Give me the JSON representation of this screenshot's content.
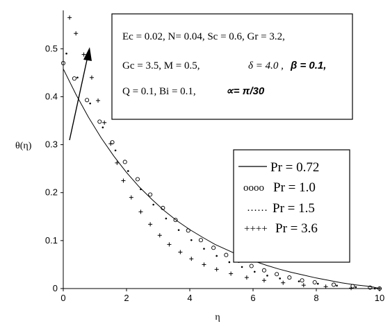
{
  "chart_data": {
    "type": "scatter",
    "xlabel": "η",
    "ylabel": "θ(η)",
    "xlim": [
      0,
      10
    ],
    "ylim": [
      0,
      0.58
    ],
    "xticks": [
      "0",
      "2",
      "4",
      "6",
      "8",
      "10"
    ],
    "yticks": [
      "0",
      "0.1",
      "0.2",
      "0.3",
      "0.4",
      "0.5"
    ],
    "annotation_lines": [
      "Ec = 0.02, N= 0.04, Sc = 0.6, Gr = 3.2,",
      "Gc = 3.5, M = 0.5,",
      "Q = 0.1, Bi = 0.1,"
    ],
    "annotation_greek": {
      "delta": "δ = 4.0 ,",
      "beta": "β = 0.1,",
      "alpha": "∝= π/30"
    },
    "legend": [
      {
        "symbol": "———",
        "label": "Pr = 0.72",
        "marker": "line"
      },
      {
        "symbol": "oooo",
        "label": "Pr = 1.0",
        "marker": "circle"
      },
      {
        "symbol": "……",
        "label": "Pr = 1.5",
        "marker": "dot"
      },
      {
        "symbol": "++++",
        "label": "Pr = 3.6",
        "marker": "plus"
      }
    ],
    "series": [
      {
        "values": [
          0.458,
          0.405,
          0.357,
          0.314,
          0.276,
          0.242,
          0.212,
          0.186,
          0.162,
          0.141,
          0.123,
          0.107,
          0.092,
          0.08,
          0.068,
          0.058,
          0.049,
          0.041,
          0.034,
          0.028,
          0.022,
          0.017,
          0.012,
          0.008,
          0.005,
          0.003,
          0.0
        ]
      },
      {
        "values": [
          0.47,
          0.438,
          0.393,
          0.348,
          0.305,
          0.264,
          0.228,
          0.196,
          0.168,
          0.143,
          0.121,
          0.101,
          0.085,
          0.07,
          0.058,
          0.047,
          0.038,
          0.03,
          0.023,
          0.017,
          0.013,
          0.008,
          0.005,
          0.002,
          0.0
        ]
      },
      {
        "values": [
          0.49,
          0.44,
          0.386,
          0.336,
          0.288,
          0.245,
          0.207,
          0.175,
          0.146,
          0.122,
          0.101,
          0.083,
          0.068,
          0.055,
          0.045,
          0.035,
          0.027,
          0.021,
          0.015,
          0.01,
          0.006,
          0.003,
          0.0
        ]
      },
      {
        "values": [
          0.565,
          0.532,
          0.488,
          0.44,
          0.392,
          0.346,
          0.302,
          0.262,
          0.225,
          0.19,
          0.16,
          0.134,
          0.111,
          0.092,
          0.076,
          0.062,
          0.05,
          0.04,
          0.031,
          0.023,
          0.017,
          0.012,
          0.007,
          0.004,
          0.001,
          0.0
        ]
      }
    ],
    "series_x": [
      [
        0,
        0.4,
        0.8,
        1.2,
        1.6,
        2.0,
        2.4,
        2.8,
        3.2,
        3.6,
        4.0,
        4.4,
        4.8,
        5.2,
        5.6,
        6.0,
        6.4,
        6.8,
        7.2,
        7.6,
        8.0,
        8.4,
        8.8,
        9.2,
        9.6,
        9.8,
        10.0
      ],
      [
        0.0,
        0.35,
        0.75,
        1.15,
        1.55,
        1.95,
        2.35,
        2.75,
        3.15,
        3.55,
        3.95,
        4.35,
        4.75,
        5.15,
        5.55,
        5.95,
        6.35,
        6.75,
        7.15,
        7.55,
        7.95,
        8.55,
        9.15,
        9.7,
        10.0
      ],
      [
        0.1,
        0.45,
        0.85,
        1.25,
        1.65,
        2.05,
        2.45,
        2.85,
        3.25,
        3.65,
        4.05,
        4.45,
        4.85,
        5.25,
        5.65,
        6.05,
        6.45,
        6.85,
        7.45,
        8.05,
        8.65,
        9.25,
        9.85
      ],
      [
        0.2,
        0.4,
        0.65,
        0.9,
        1.1,
        1.3,
        1.5,
        1.7,
        1.9,
        2.15,
        2.45,
        2.75,
        3.05,
        3.35,
        3.7,
        4.05,
        4.45,
        4.85,
        5.3,
        5.8,
        6.35,
        6.95,
        7.6,
        8.3,
        9.1,
        10.0
      ]
    ]
  }
}
